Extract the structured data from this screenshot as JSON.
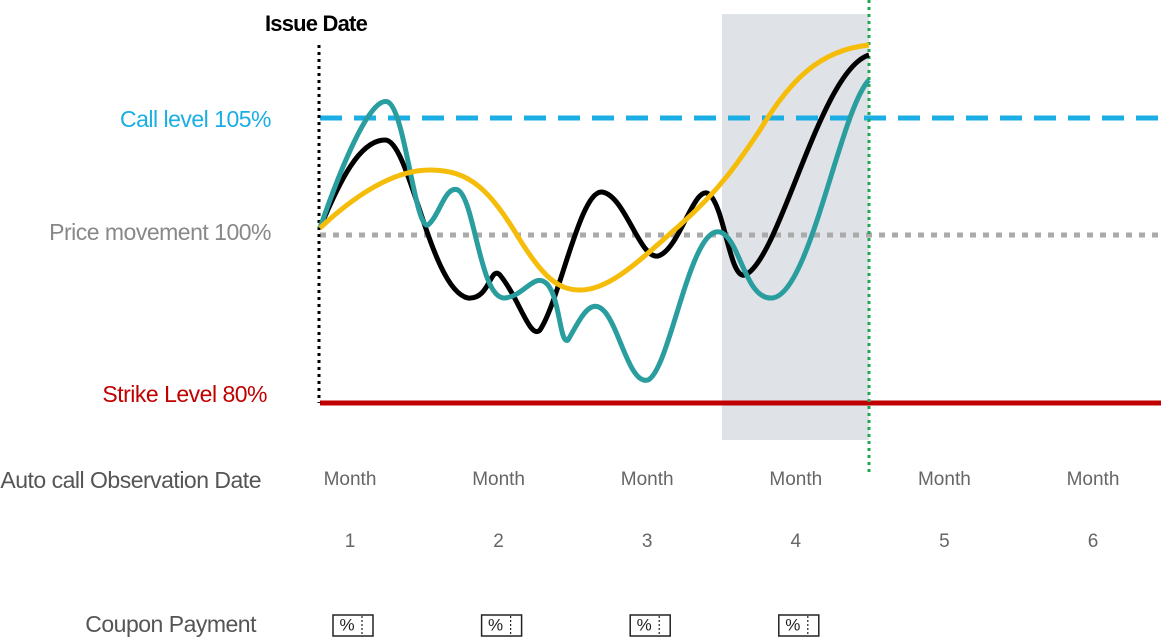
{
  "issue_date": "Issue Date",
  "levels": {
    "call": "Call level 105%",
    "price": "Price movement 100%",
    "strike": "Strike Level 80%"
  },
  "observation_label": "Auto call Observation Date",
  "months": [
    {
      "label": "Month",
      "number": "1"
    },
    {
      "label": "Month",
      "number": "2"
    },
    {
      "label": "Month",
      "number": "3"
    },
    {
      "label": "Month",
      "number": "4"
    },
    {
      "label": "Month",
      "number": "5"
    },
    {
      "label": "Month",
      "number": "6"
    }
  ],
  "coupon_label": "Coupon Payment",
  "coupons": [
    "%",
    "%",
    "%",
    "%"
  ]
}
